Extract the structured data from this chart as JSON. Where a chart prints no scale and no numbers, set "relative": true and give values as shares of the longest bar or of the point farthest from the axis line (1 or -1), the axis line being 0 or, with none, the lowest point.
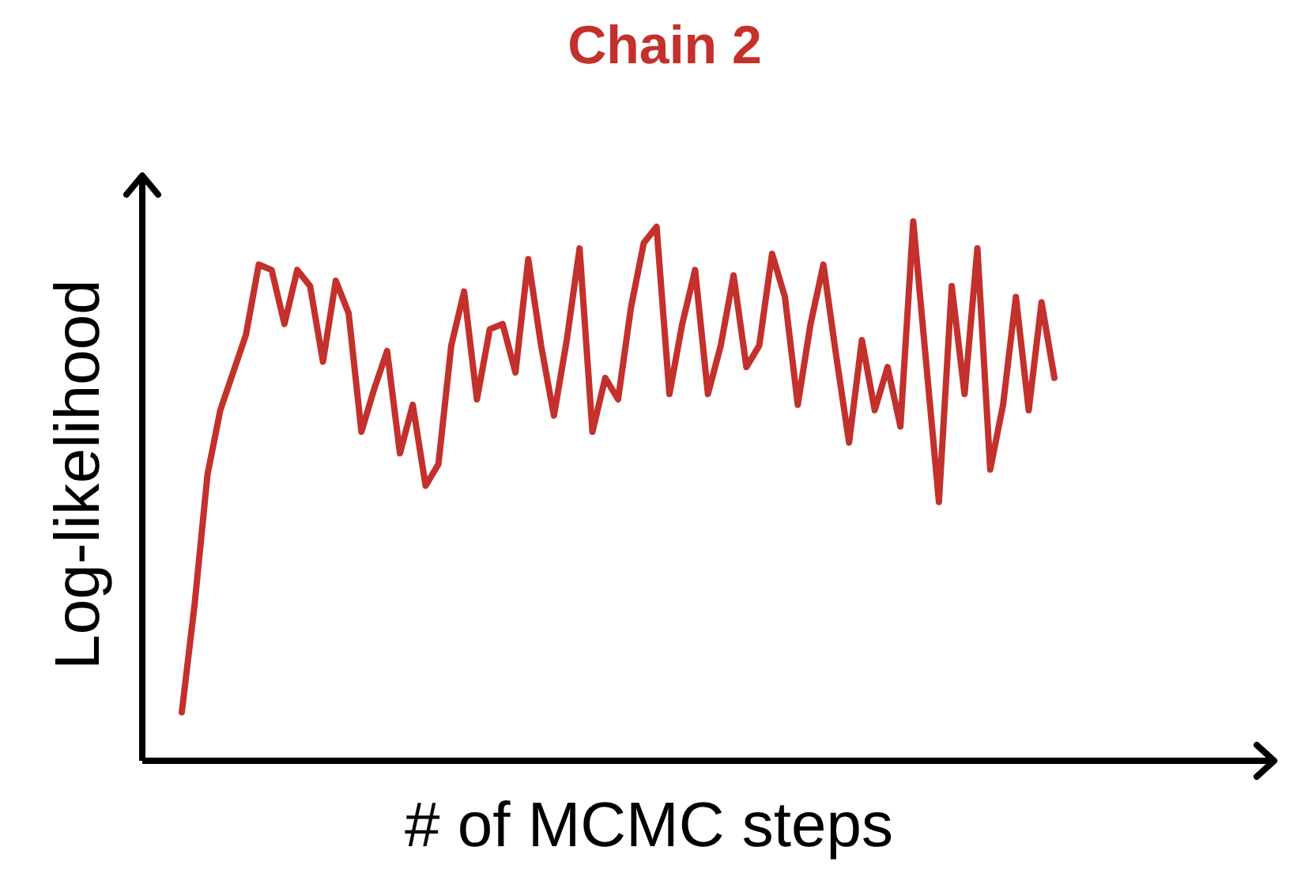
{
  "chart_data": {
    "type": "line",
    "title": "Chain 2",
    "xlabel": "# of MCMC steps",
    "ylabel": "Log-likelihood",
    "relative": true,
    "categories": [
      null,
      null,
      null,
      null,
      null,
      null,
      null,
      null,
      null,
      null,
      null,
      null,
      null,
      null,
      null,
      null,
      null,
      null,
      null,
      null,
      null,
      null,
      null,
      null,
      null,
      null,
      null,
      null,
      null,
      null,
      null,
      null,
      null,
      null,
      null,
      null,
      null,
      null,
      null,
      null,
      null,
      null,
      null,
      null,
      null,
      null,
      null,
      null,
      null,
      null,
      null,
      null,
      null,
      null,
      null,
      null,
      null,
      null,
      null,
      null,
      null,
      null,
      null,
      null,
      null,
      null,
      null,
      null,
      null
    ],
    "series": [
      {
        "color": "#c4302b",
        "values": [
          0.09,
          0.29,
          0.53,
          0.65,
          0.72,
          0.79,
          0.92,
          0.91,
          0.81,
          0.91,
          0.88,
          0.74,
          0.89,
          0.83,
          0.61,
          0.69,
          0.76,
          0.57,
          0.66,
          0.51,
          0.55,
          0.77,
          0.87,
          0.67,
          0.8,
          0.81,
          0.72,
          0.93,
          0.77,
          0.64,
          0.78,
          0.95,
          0.61,
          0.71,
          0.67,
          0.84,
          0.96,
          0.99,
          0.68,
          0.81,
          0.91,
          0.68,
          0.77,
          0.9,
          0.73,
          0.77,
          0.94,
          0.86,
          0.66,
          0.81,
          0.92,
          0.75,
          0.59,
          0.78,
          0.65,
          0.73,
          0.62,
          1,
          0.74,
          0.48,
          0.88,
          0.68,
          0.95,
          0.54,
          0.66,
          0.86,
          0.65,
          0.85,
          0.71
        ]
      }
    ]
  }
}
